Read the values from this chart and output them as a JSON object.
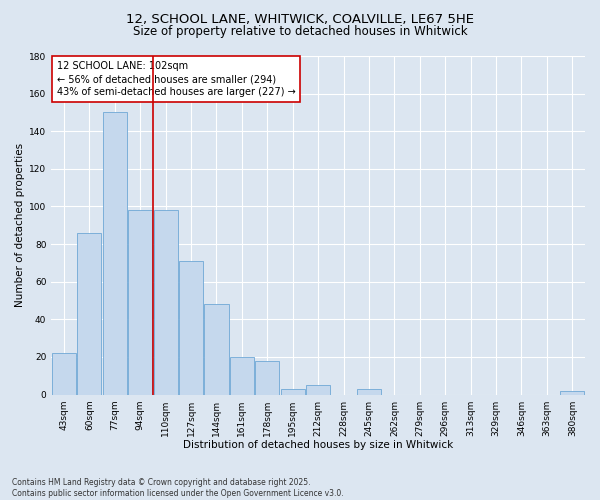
{
  "title_line1": "12, SCHOOL LANE, WHITWICK, COALVILLE, LE67 5HE",
  "title_line2": "Size of property relative to detached houses in Whitwick",
  "xlabel": "Distribution of detached houses by size in Whitwick",
  "ylabel": "Number of detached properties",
  "footnote": "Contains HM Land Registry data © Crown copyright and database right 2025.\nContains public sector information licensed under the Open Government Licence v3.0.",
  "categories": [
    "43sqm",
    "60sqm",
    "77sqm",
    "94sqm",
    "110sqm",
    "127sqm",
    "144sqm",
    "161sqm",
    "178sqm",
    "195sqm",
    "212sqm",
    "228sqm",
    "245sqm",
    "262sqm",
    "279sqm",
    "296sqm",
    "313sqm",
    "329sqm",
    "346sqm",
    "363sqm",
    "380sqm"
  ],
  "values": [
    22,
    86,
    150,
    98,
    98,
    71,
    48,
    20,
    18,
    3,
    5,
    0,
    3,
    0,
    0,
    0,
    0,
    0,
    0,
    0,
    2
  ],
  "bar_color": "#c5d8ed",
  "bar_edge_color": "#6fa8d6",
  "background_color": "#dce6f1",
  "grid_color": "#ffffff",
  "vline_color": "#cc0000",
  "annotation_text": "12 SCHOOL LANE: 102sqm\n← 56% of detached houses are smaller (294)\n43% of semi-detached houses are larger (227) →",
  "annotation_box_color": "#cc0000",
  "ylim": [
    0,
    180
  ],
  "yticks": [
    0,
    20,
    40,
    60,
    80,
    100,
    120,
    140,
    160,
    180
  ],
  "title_fontsize": 9.5,
  "subtitle_fontsize": 8.5,
  "axis_label_fontsize": 7.5,
  "tick_fontsize": 6.5,
  "annotation_fontsize": 7,
  "footnote_fontsize": 5.5
}
